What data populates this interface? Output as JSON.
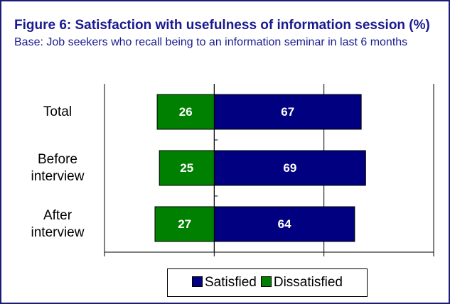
{
  "chart_data": {
    "type": "bar",
    "orientation": "horizontal",
    "stacking": "diverging",
    "title": "Figure 6: Satisfaction with usefulness of information session (%)",
    "subtitle": "Base: Job seekers who recall being to an information seminar in last 6 months",
    "categories": [
      "Total",
      "Before interview",
      "After interview"
    ],
    "series": [
      {
        "name": "Satisfied",
        "color": "#000080",
        "values": [
          67,
          69,
          64
        ]
      },
      {
        "name": "Dissatisfied",
        "color": "#008000",
        "values": [
          26,
          25,
          27
        ]
      }
    ],
    "xlim": [
      -50,
      100
    ],
    "xticks": [
      -50,
      0,
      50,
      100
    ],
    "grid": true
  }
}
